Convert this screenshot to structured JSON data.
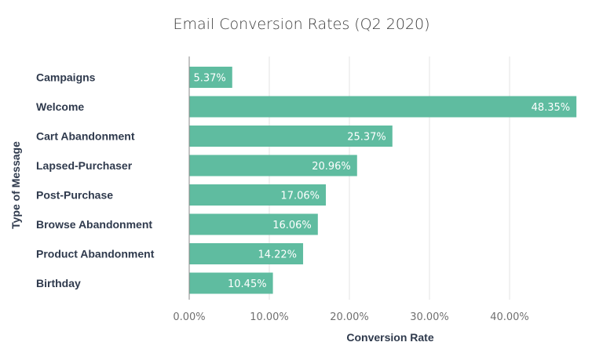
{
  "chart_data": {
    "type": "bar",
    "orientation": "horizontal",
    "title": "Email Conversion Rates (Q2 2020)",
    "xlabel": "Conversion Rate",
    "ylabel": "Type of Message",
    "categories": [
      "Campaigns",
      "Welcome",
      "Cart Abandonment",
      "Lapsed-Purchaser",
      "Post-Purchase",
      "Browse Abandonment",
      "Product Abandonment",
      "Birthday"
    ],
    "values": [
      5.37,
      48.35,
      25.37,
      20.96,
      17.06,
      16.06,
      14.22,
      10.45
    ],
    "value_labels": [
      "5.37%",
      "48.35%",
      "25.37%",
      "20.96%",
      "17.06%",
      "16.06%",
      "14.22%",
      "10.45%"
    ],
    "xlim": [
      0,
      50
    ],
    "x_ticks": [
      0,
      10,
      20,
      30,
      40
    ],
    "x_tick_labels": [
      "0.00%",
      "10.00%",
      "20.00%",
      "30.00%",
      "40.00%"
    ],
    "grid": true,
    "colors": {
      "bar": "#5fbca0",
      "title": "#3d3d3d",
      "category_text": "#2f3a4d",
      "tick_text": "#707070",
      "grid": "#e3e3e3",
      "axis": "#888888",
      "data_label": "#ffffff"
    }
  }
}
